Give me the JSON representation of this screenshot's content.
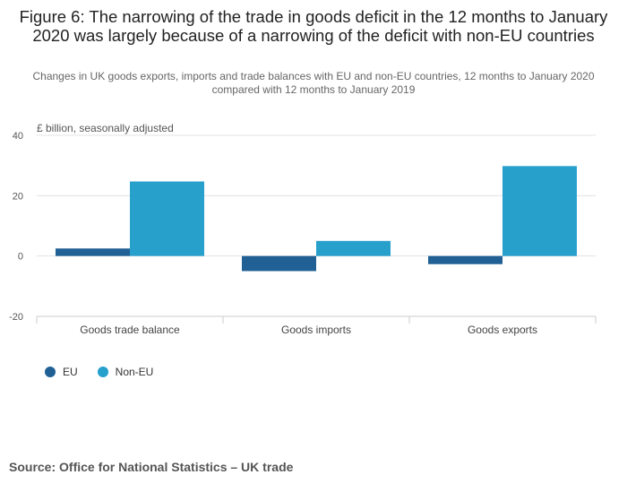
{
  "title": "Figure 6: The narrowing of the trade in goods deficit in the 12 months to January 2020 was largely because of a narrowing of the deficit with non-EU countries",
  "subtitle": "Changes in UK goods exports, imports and trade balances with EU and non-EU countries, 12 months to January 2020 compared with 12 months to January 2019",
  "source": "Source: Office for National Statistics – UK trade",
  "colors": {
    "eu": "#206095",
    "non_eu": "#27a0cc"
  },
  "chart_data": {
    "type": "bar",
    "title": "Figure 6: The narrowing of the trade in goods deficit in the 12 months to January 2020 was largely because of a narrowing of the deficit with non-EU countries",
    "ylabel": "£ billion, seasonally adjusted",
    "xlabel": "",
    "categories": [
      "Goods trade balance",
      "Goods imports",
      "Goods exports"
    ],
    "series": [
      {
        "name": "EU",
        "values": [
          2.5,
          -5.0,
          -2.7
        ]
      },
      {
        "name": "Non-EU",
        "values": [
          24.7,
          5.0,
          29.8
        ]
      }
    ],
    "ylim": [
      -20,
      40
    ],
    "yticks": [
      40,
      20,
      0,
      -20
    ],
    "grid": true,
    "legend": "bottom-left"
  }
}
